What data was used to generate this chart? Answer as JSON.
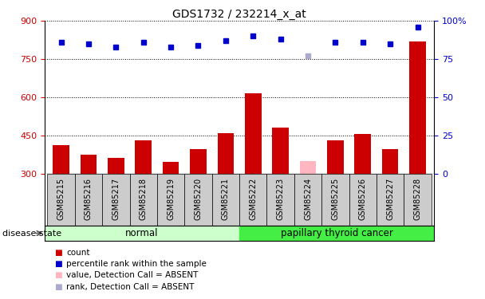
{
  "title": "GDS1732 / 232214_x_at",
  "samples": [
    "GSM85215",
    "GSM85216",
    "GSM85217",
    "GSM85218",
    "GSM85219",
    "GSM85220",
    "GSM85221",
    "GSM85222",
    "GSM85223",
    "GSM85224",
    "GSM85225",
    "GSM85226",
    "GSM85227",
    "GSM85228"
  ],
  "count_values": [
    410,
    375,
    360,
    430,
    345,
    395,
    460,
    615,
    480,
    350,
    430,
    455,
    395,
    820
  ],
  "rank_values": [
    86,
    85,
    83,
    86,
    83,
    84,
    87,
    90,
    88,
    77,
    86,
    86,
    85,
    96
  ],
  "absent_mask": [
    false,
    false,
    false,
    false,
    false,
    false,
    false,
    false,
    false,
    true,
    false,
    false,
    false,
    false
  ],
  "ylim_left": [
    300,
    900
  ],
  "ylim_right": [
    0,
    100
  ],
  "yticks_left": [
    300,
    450,
    600,
    750,
    900
  ],
  "yticks_right": [
    0,
    25,
    50,
    75,
    100
  ],
  "bar_color_present": "#cc0000",
  "bar_color_absent": "#ffb6c1",
  "rank_color_present": "#0000cc",
  "rank_color_absent": "#aaaacc",
  "cell_bg": "#cccccc",
  "plot_bg": "#ffffff",
  "normal_color": "#ccffcc",
  "cancer_color": "#44ee44",
  "legend_items": [
    {
      "label": "count",
      "color": "#cc0000"
    },
    {
      "label": "percentile rank within the sample",
      "color": "#0000cc"
    },
    {
      "label": "value, Detection Call = ABSENT",
      "color": "#ffb6c1"
    },
    {
      "label": "rank, Detection Call = ABSENT",
      "color": "#aaaacc"
    }
  ]
}
